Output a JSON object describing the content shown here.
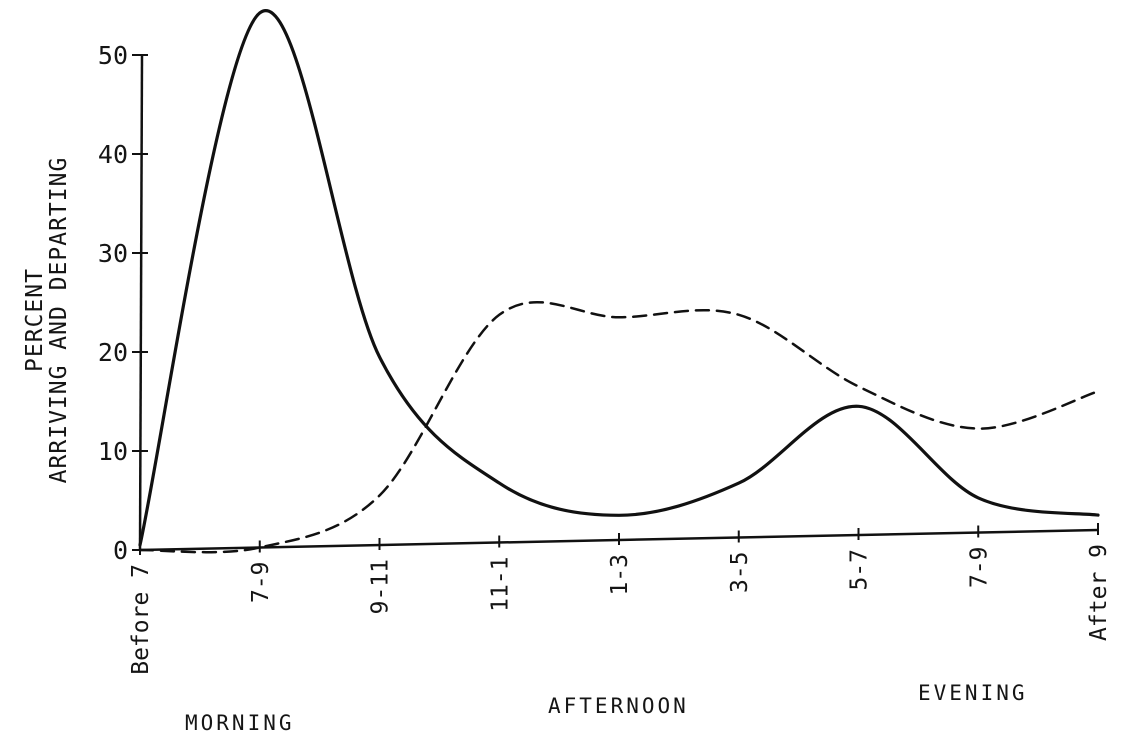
{
  "chart_data": {
    "type": "line",
    "title": "",
    "ylabel_lines": [
      "PERCENT",
      "ARRIVING AND DEPARTING"
    ],
    "xlabel": "",
    "categories": [
      "Before 7",
      "7-9",
      "9-11",
      "11-1",
      "1-3",
      "3-5",
      "5-7",
      "7-9",
      "After 9"
    ],
    "period_labels": [
      "MORNING",
      "AFTERNOON",
      "EVENING"
    ],
    "ylim": [
      0,
      55
    ],
    "yticks": [
      "0",
      "10",
      "20",
      "30",
      "40",
      "50"
    ],
    "yticks_values": [
      0,
      10,
      20,
      30,
      40,
      50
    ],
    "grid": false,
    "legend": "none",
    "series": [
      {
        "style": "solid",
        "color": "#111111",
        "values": [
          0.5,
          54,
          19,
          6,
          2.5,
          5.5,
          13,
          3.5,
          1.5
        ]
      },
      {
        "style": "dashed",
        "color": "#111111",
        "values": [
          0,
          0,
          5,
          23,
          22.5,
          22.5,
          15,
          10.5,
          14
        ]
      }
    ]
  }
}
